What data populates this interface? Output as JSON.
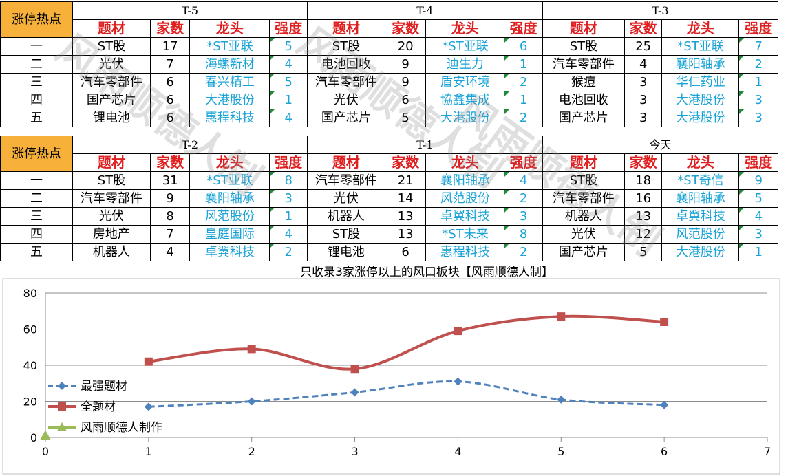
{
  "sheet": {
    "hot_label": "涨停热点",
    "headers": [
      "题材",
      "家数",
      "龙头",
      "强度"
    ],
    "ranks": [
      "一",
      "二",
      "三",
      "四",
      "五"
    ],
    "blocks": [
      {
        "periods": [
          {
            "name": "T-5",
            "rows": [
              [
                "ST股",
                "17",
                "*ST亚联",
                "5"
              ],
              [
                "光伏",
                "7",
                "海螺新材",
                "4"
              ],
              [
                "汽车零部件",
                "6",
                "春兴精工",
                "5"
              ],
              [
                "国产芯片",
                "6",
                "大港股份",
                "1"
              ],
              [
                "锂电池",
                "6",
                "惠程科技",
                "4"
              ]
            ]
          },
          {
            "name": "T-4",
            "rows": [
              [
                "ST股",
                "20",
                "*ST亚联",
                "6"
              ],
              [
                "电池回收",
                "9",
                "迪生力",
                "1"
              ],
              [
                "汽车零部件",
                "9",
                "盾安环境",
                "2"
              ],
              [
                "光伏",
                "6",
                "協鑫集成",
                "1"
              ],
              [
                "国产芯片",
                "5",
                "大港股份",
                "2"
              ]
            ]
          },
          {
            "name": "T-3",
            "rows": [
              [
                "ST股",
                "25",
                "*ST亚联",
                "7"
              ],
              [
                "汽车零部件",
                "4",
                "襄阳轴承",
                "2"
              ],
              [
                "猴痘",
                "3",
                "华仁药业",
                "1"
              ],
              [
                "电池回收",
                "3",
                "大港股份",
                "3"
              ],
              [
                "国产芯片",
                "3",
                "大港股份",
                "3"
              ]
            ]
          }
        ]
      },
      {
        "periods": [
          {
            "name": "T-2",
            "rows": [
              [
                "ST股",
                "31",
                "*ST亚联",
                "8"
              ],
              [
                "汽车零部件",
                "9",
                "襄阳轴承",
                "3"
              ],
              [
                "光伏",
                "8",
                "风范股份",
                "1"
              ],
              [
                "房地产",
                "7",
                "皇庭国际",
                "4"
              ],
              [
                "机器人",
                "4",
                "卓翼科技",
                "2"
              ]
            ]
          },
          {
            "name": "T-1",
            "rows": [
              [
                "汽车零部件",
                "21",
                "襄阳轴承",
                "4"
              ],
              [
                "光伏",
                "14",
                "风范股份",
                "2"
              ],
              [
                "机器人",
                "13",
                "卓翼科技",
                "3"
              ],
              [
                "ST股",
                "13",
                "*ST未来",
                "8"
              ],
              [
                "锂电池",
                "6",
                "惠程科技",
                "2"
              ]
            ]
          },
          {
            "name": "今天",
            "rows": [
              [
                "ST股",
                "18",
                "*ST奇信",
                "9"
              ],
              [
                "汽车零部件",
                "16",
                "襄阳轴承",
                "5"
              ],
              [
                "机器人",
                "13",
                "卓翼科技",
                "4"
              ],
              [
                "光伏",
                "12",
                "风范股份",
                "3"
              ],
              [
                "国产芯片",
                "5",
                "大港股份",
                "1"
              ]
            ]
          }
        ]
      }
    ]
  },
  "watermark_text": "风雨顺德人制",
  "chart_data": {
    "type": "line",
    "title": "只收录3家涨停以上的风口板块【风雨顺德人制】",
    "xlabel": "",
    "ylabel": "",
    "xlim": [
      0,
      7
    ],
    "ylim": [
      0,
      80
    ],
    "xticks": [
      0,
      1,
      2,
      3,
      4,
      5,
      6,
      7
    ],
    "yticks": [
      0,
      20,
      40,
      60,
      80
    ],
    "grid": true,
    "legend_position": "left",
    "series": [
      {
        "name": "最强题材",
        "x": [
          1,
          2,
          3,
          4,
          5,
          6
        ],
        "values": [
          17,
          20,
          25,
          31,
          21,
          18
        ],
        "color": "#4f81bd",
        "marker": "diamond",
        "dash": true
      },
      {
        "name": "全题材",
        "x": [
          1,
          2,
          3,
          4,
          5,
          6
        ],
        "values": [
          42,
          49,
          38,
          59,
          67,
          64
        ],
        "color": "#c0504d",
        "marker": "square",
        "dash": false
      },
      {
        "name": "风雨顺德人制作",
        "x": [
          0
        ],
        "values": [
          1
        ],
        "color": "#9bbb59",
        "marker": "triangle",
        "dash": false
      }
    ]
  }
}
